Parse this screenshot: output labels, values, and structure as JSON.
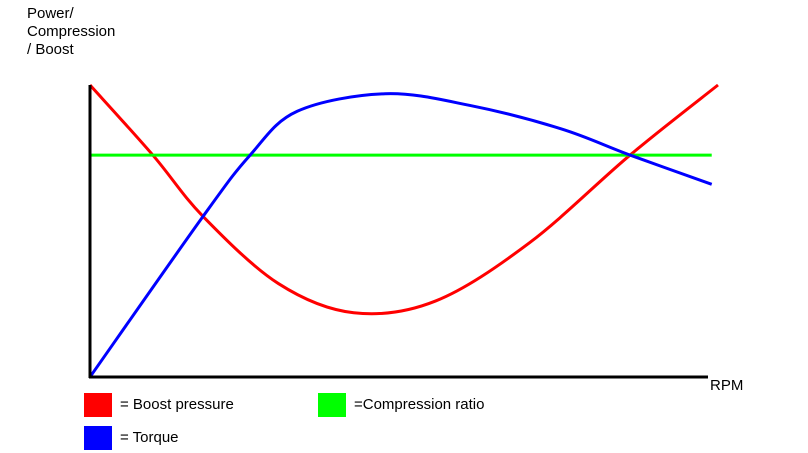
{
  "chart_data": {
    "type": "line",
    "y_label": [
      "Power/",
      "Compression",
      "/ Boost"
    ],
    "x_label": "RPM",
    "xlim": [
      0,
      100
    ],
    "ylim": [
      0,
      100
    ],
    "series": [
      {
        "name": "= Boost pressure",
        "color": "#ff0000",
        "x": [
          0,
          10,
          18,
          30,
          42,
          55,
          70,
          86,
          100
        ],
        "values": [
          100,
          76,
          55,
          32,
          22,
          26,
          46,
          76,
          100
        ]
      },
      {
        "name": "=Compression ratio",
        "color": "#00ff00",
        "x": [
          0,
          99
        ],
        "values": [
          76,
          76
        ]
      },
      {
        "name": "= Torque",
        "color": "#0000ff",
        "x": [
          0,
          18,
          25.5,
          33,
          47,
          60.5,
          75,
          86,
          99
        ],
        "values": [
          0,
          55,
          76,
          91,
          97,
          93,
          85,
          76,
          66
        ]
      }
    ]
  }
}
